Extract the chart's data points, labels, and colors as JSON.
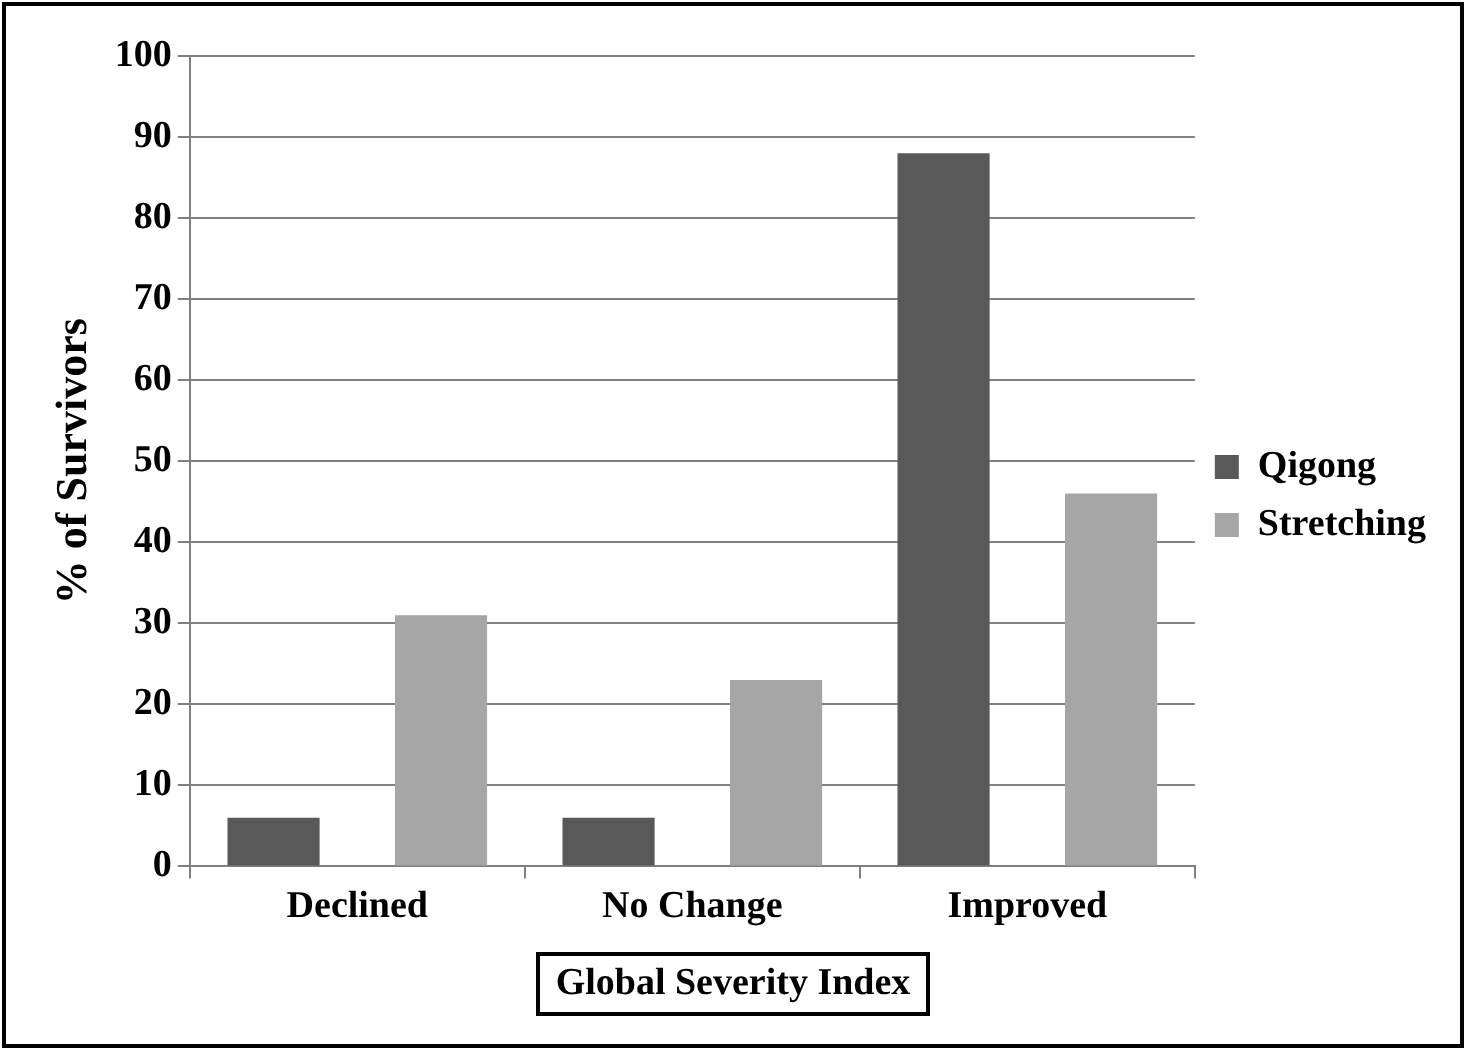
{
  "chart_data": {
    "type": "bar",
    "xlabel": "Global Severity Index",
    "ylabel": "% of Survivors",
    "categories": [
      "Declined",
      "No Change",
      "Improved"
    ],
    "series": [
      {
        "name": "Qigong",
        "color": "#595959",
        "values": [
          6,
          6,
          88
        ]
      },
      {
        "name": "Stretching",
        "color": "#a6a6a6",
        "values": [
          31,
          23,
          46
        ]
      }
    ],
    "ylim": [
      0,
      100
    ],
    "yticks": [
      0,
      10,
      20,
      30,
      40,
      50,
      60,
      70,
      80,
      90,
      100
    ],
    "grid": "y",
    "legend": "right"
  }
}
